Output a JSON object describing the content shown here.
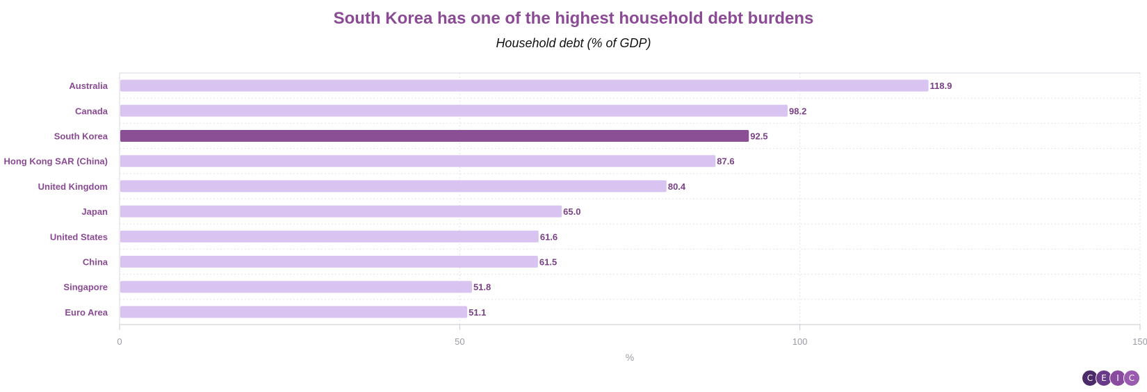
{
  "chart_data": {
    "type": "bar",
    "orientation": "horizontal",
    "title": "South Korea has one of the highest household debt burdens",
    "subtitle": "Household debt (% of GDP)",
    "categories": [
      "Australia",
      "Canada",
      "South Korea",
      "Hong Kong SAR (China)",
      "United Kingdom",
      "Japan",
      "United States",
      "China",
      "Singapore",
      "Euro Area"
    ],
    "values": [
      118.9,
      98.2,
      92.5,
      87.6,
      80.4,
      65.0,
      61.6,
      61.5,
      51.8,
      51.1
    ],
    "value_labels": [
      "118.9",
      "98.2",
      "92.5",
      "87.6",
      "80.4",
      "65.0",
      "61.6",
      "61.5",
      "51.8",
      "51.1"
    ],
    "highlight": "South Korea",
    "xlabel": "%",
    "ylabel": "",
    "xlim": [
      0,
      150
    ],
    "xticks": [
      0,
      50,
      100,
      150
    ],
    "xtick_labels": [
      "0",
      "50",
      "100",
      "150"
    ],
    "grid": true,
    "colors": {
      "bar": "#d9c3f0",
      "highlight": "#8a4f94",
      "title": "#8a4a94",
      "labels": "#8a4a94"
    }
  },
  "logo": {
    "letters": [
      "C",
      "E",
      "I",
      "C"
    ],
    "colors": [
      "#4a2a68",
      "#6a3a8a",
      "#8a4aa0",
      "#9a5ab0"
    ]
  }
}
